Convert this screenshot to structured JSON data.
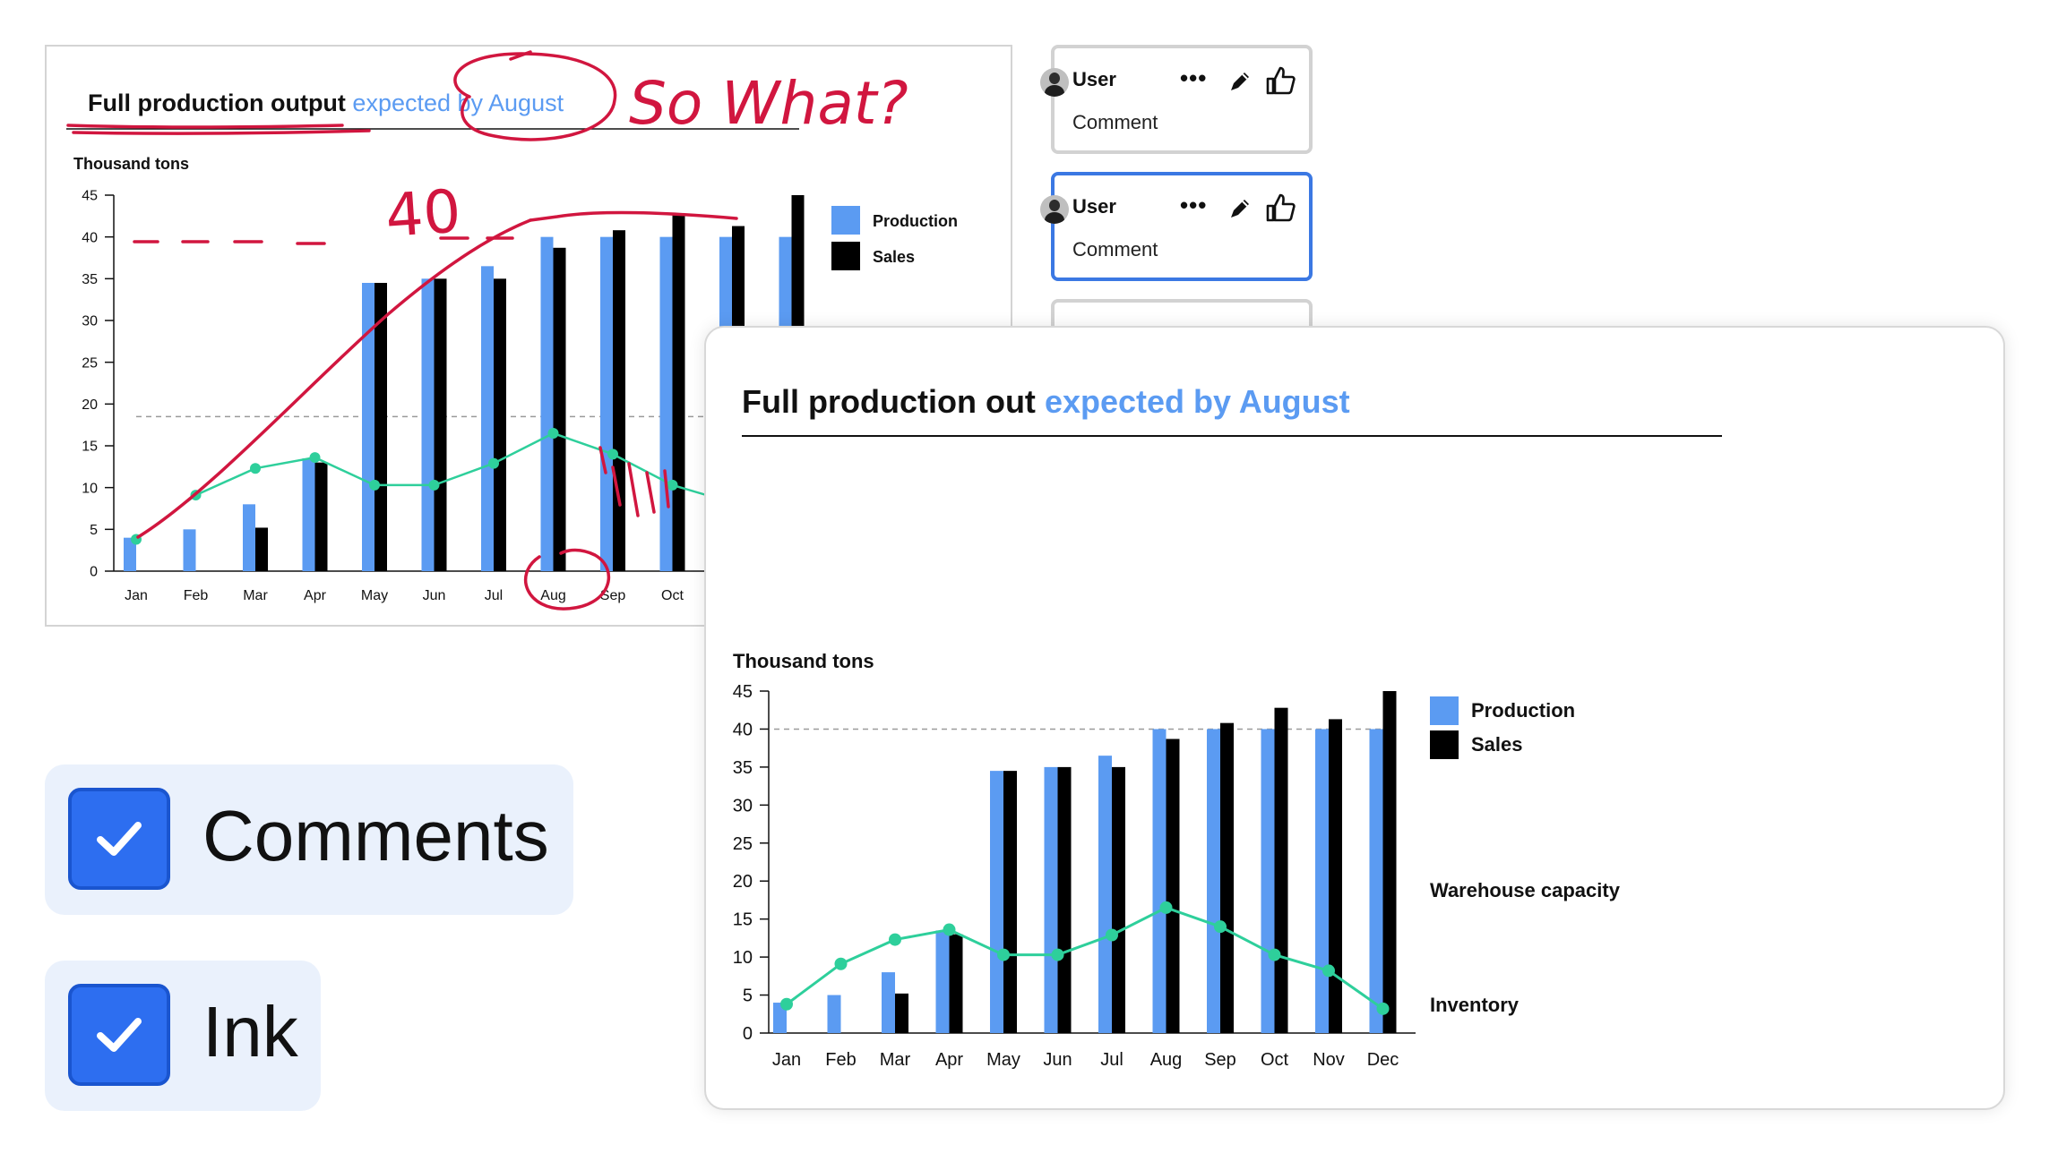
{
  "colors": {
    "production": "#5b9bf2",
    "sales": "#000000",
    "inventory": "#2ecf9b",
    "ink": "#d1163f",
    "active_border": "#3b78e3",
    "toggle_box": "#2d6ef0"
  },
  "small_chart": {
    "title_dark": "Full production output",
    "title_accent": "expected by August",
    "unit": "Thousand tons",
    "legend": [
      "Production",
      "Sales"
    ],
    "y_ticks": [
      "0",
      "5",
      "10",
      "15",
      "20",
      "25",
      "30",
      "35",
      "40",
      "45"
    ],
    "ink_notes": {
      "question": "So What?",
      "target": "40"
    }
  },
  "comments": [
    {
      "user": "User",
      "text": "Comment",
      "icon": "avatar-woman-icon"
    },
    {
      "user": "User",
      "text": "Comment",
      "icon": "avatar-man-icon"
    }
  ],
  "big_chart": {
    "title_dark": "Full production out",
    "title_accent": "expected by August",
    "unit": "Thousand tons",
    "legend": [
      "Production",
      "Sales"
    ],
    "annotations": {
      "capacity": "Warehouse capacity",
      "inventory": "Inventory"
    }
  },
  "toggles": {
    "comments": "Comments",
    "ink": "Ink"
  },
  "chart_data": {
    "type": "bar",
    "categories": [
      "Jan",
      "Feb",
      "Mar",
      "Apr",
      "May",
      "Jun",
      "Jul",
      "Aug",
      "Sep",
      "Oct",
      "Nov",
      "Dec"
    ],
    "series": [
      {
        "name": "Production",
        "type": "bar",
        "values": [
          4,
          5,
          8,
          13.5,
          34.5,
          35,
          36.5,
          40,
          40,
          40,
          40,
          40
        ]
      },
      {
        "name": "Sales",
        "type": "bar",
        "values": [
          0,
          0,
          5.2,
          13,
          34.5,
          35,
          35,
          38.7,
          40.8,
          42.8,
          41.3,
          45
        ]
      },
      {
        "name": "Inventory",
        "type": "line",
        "values": [
          3.8,
          9.1,
          12.3,
          13.6,
          10.3,
          10.3,
          12.9,
          16.5,
          14,
          10.3,
          8.2,
          3.2
        ]
      }
    ],
    "reference_line": {
      "label": "Warehouse capacity",
      "value": 40
    },
    "title": "Full production out expected by August",
    "ylabel": "Thousand tons",
    "ylim": [
      0,
      45
    ],
    "y_ticks": [
      0,
      5,
      10,
      15,
      20,
      25,
      30,
      35,
      40,
      45
    ],
    "legend_position": "top-right"
  }
}
